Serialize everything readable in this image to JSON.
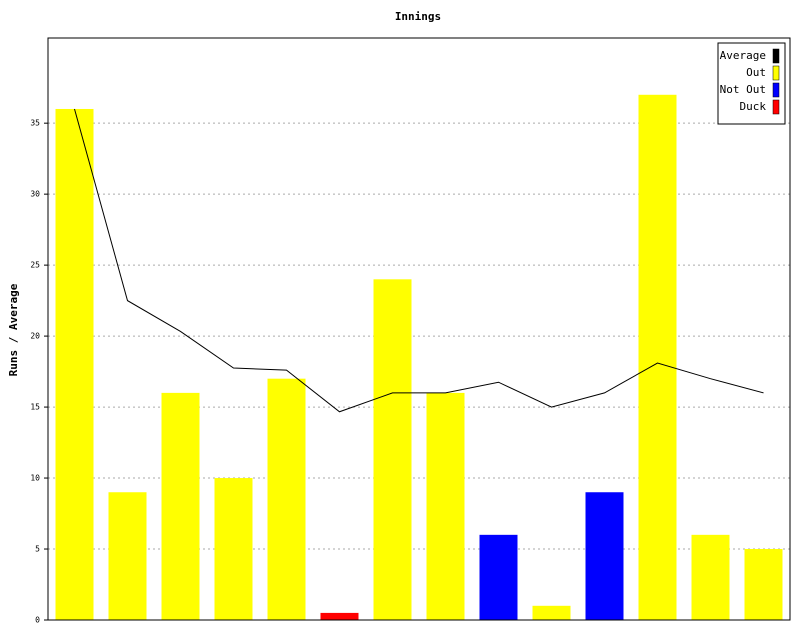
{
  "chart_data": {
    "type": "bar",
    "title": "Innings",
    "y_label": "Runs / Average",
    "categories": [
      null,
      null,
      null,
      null,
      null,
      null,
      null,
      null,
      null,
      null,
      null,
      null,
      null,
      null
    ],
    "series": [
      {
        "name": "Average",
        "color": "#000000",
        "type": "line",
        "values": [
          36,
          22.5,
          20.33,
          17.75,
          17.6,
          14.67,
          16,
          16,
          16.75,
          15,
          16,
          18.1,
          17,
          16
        ]
      },
      {
        "name": "Out",
        "color": "#ffff00",
        "values": [
          36,
          9,
          16,
          10,
          17,
          null,
          24,
          16,
          null,
          1,
          null,
          37,
          6,
          5
        ]
      },
      {
        "name": "Not Out",
        "color": "#0000ff",
        "values": [
          null,
          null,
          null,
          null,
          null,
          null,
          null,
          null,
          6,
          null,
          9,
          null,
          null,
          null
        ]
      },
      {
        "name": "Duck",
        "color": "#ff0000",
        "values": [
          null,
          null,
          null,
          null,
          null,
          0.5,
          null,
          null,
          null,
          null,
          null,
          null,
          null,
          null
        ]
      }
    ],
    "ylim": [
      0,
      41
    ],
    "yticks": [
      0,
      5,
      10,
      15,
      20,
      25,
      30,
      35
    ],
    "grid": true,
    "legend": "top-right"
  }
}
